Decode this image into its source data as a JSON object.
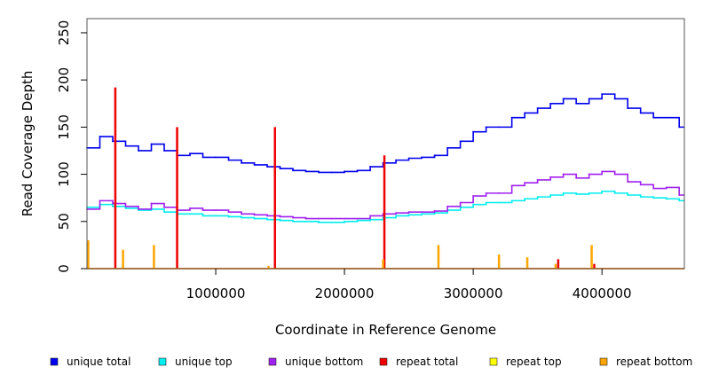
{
  "chart_data": {
    "type": "line",
    "title": "",
    "xlabel": "Coordinate in Reference Genome",
    "ylabel": "Read Coverage Depth",
    "xlim": [
      0,
      4640000
    ],
    "ylim": [
      0,
      265
    ],
    "x_ticks": [
      1000000,
      2000000,
      3000000,
      4000000
    ],
    "x_tick_labels": [
      "1000000",
      "2000000",
      "3000000",
      "4000000"
    ],
    "y_ticks": [
      0,
      50,
      100,
      150,
      200,
      250
    ],
    "y_tick_labels": [
      "0",
      "50",
      "100",
      "150",
      "200",
      "250"
    ],
    "legend_position": "bottom",
    "series": [
      {
        "name": "unique total",
        "color": "#0000ee",
        "x": [
          0,
          100000,
          200000,
          300000,
          400000,
          500000,
          600000,
          700000,
          800000,
          900000,
          1000000,
          1100000,
          1200000,
          1300000,
          1400000,
          1500000,
          1600000,
          1700000,
          1800000,
          1900000,
          2000000,
          2100000,
          2200000,
          2300000,
          2400000,
          2500000,
          2600000,
          2700000,
          2800000,
          2900000,
          3000000,
          3100000,
          3200000,
          3300000,
          3400000,
          3500000,
          3600000,
          3700000,
          3800000,
          3900000,
          4000000,
          4100000,
          4200000,
          4300000,
          4400000,
          4500000,
          4600000
        ],
        "values": [
          128,
          140,
          135,
          130,
          125,
          132,
          125,
          120,
          122,
          118,
          118,
          115,
          112,
          110,
          108,
          106,
          104,
          103,
          102,
          102,
          103,
          104,
          108,
          112,
          115,
          117,
          118,
          120,
          128,
          135,
          145,
          150,
          150,
          160,
          165,
          170,
          175,
          180,
          175,
          180,
          185,
          180,
          170,
          165,
          160,
          160,
          150
        ]
      },
      {
        "name": "unique top",
        "color": "#00eeee",
        "x": [
          0,
          100000,
          200000,
          300000,
          400000,
          500000,
          600000,
          700000,
          800000,
          900000,
          1000000,
          1100000,
          1200000,
          1300000,
          1400000,
          1500000,
          1600000,
          1700000,
          1800000,
          1900000,
          2000000,
          2100000,
          2200000,
          2300000,
          2400000,
          2500000,
          2600000,
          2700000,
          2800000,
          2900000,
          3000000,
          3100000,
          3200000,
          3300000,
          3400000,
          3500000,
          3600000,
          3700000,
          3800000,
          3900000,
          4000000,
          4100000,
          4200000,
          4300000,
          4400000,
          4500000,
          4600000
        ],
        "values": [
          65,
          68,
          66,
          64,
          62,
          63,
          60,
          58,
          58,
          56,
          56,
          55,
          54,
          53,
          52,
          51,
          50,
          50,
          49,
          49,
          50,
          51,
          52,
          54,
          56,
          57,
          58,
          59,
          62,
          65,
          68,
          70,
          70,
          72,
          74,
          76,
          78,
          80,
          79,
          80,
          82,
          80,
          78,
          76,
          75,
          74,
          72
        ]
      },
      {
        "name": "unique bottom",
        "color": "#a020f0",
        "x": [
          0,
          100000,
          200000,
          300000,
          400000,
          500000,
          600000,
          700000,
          800000,
          900000,
          1000000,
          1100000,
          1200000,
          1300000,
          1400000,
          1500000,
          1600000,
          1700000,
          1800000,
          1900000,
          2000000,
          2100000,
          2200000,
          2300000,
          2400000,
          2500000,
          2600000,
          2700000,
          2800000,
          2900000,
          3000000,
          3100000,
          3200000,
          3300000,
          3400000,
          3500000,
          3600000,
          3700000,
          3800000,
          3900000,
          4000000,
          4100000,
          4200000,
          4300000,
          4400000,
          4500000,
          4600000
        ],
        "values": [
          63,
          72,
          69,
          66,
          63,
          69,
          65,
          62,
          64,
          62,
          62,
          60,
          58,
          57,
          56,
          55,
          54,
          53,
          53,
          53,
          53,
          53,
          56,
          58,
          59,
          60,
          60,
          61,
          66,
          70,
          77,
          80,
          80,
          88,
          91,
          94,
          97,
          100,
          96,
          100,
          103,
          100,
          92,
          89,
          85,
          86,
          78
        ]
      },
      {
        "name": "repeat total",
        "color": "#ee0000",
        "x": [
          220000,
          700000,
          1460000,
          2310000,
          3660000,
          3940000
        ],
        "values": [
          192,
          150,
          150,
          120,
          10,
          5
        ]
      },
      {
        "name": "repeat top",
        "color": "#ffff00",
        "x": [],
        "values": []
      },
      {
        "name": "repeat bottom",
        "color": "#ffa500",
        "x": [
          10000,
          280000,
          520000,
          1410000,
          2300000,
          2730000,
          3200000,
          3420000,
          3640000,
          3920000
        ],
        "values": [
          30,
          20,
          25,
          3,
          10,
          25,
          15,
          12,
          5,
          25
        ]
      }
    ]
  }
}
